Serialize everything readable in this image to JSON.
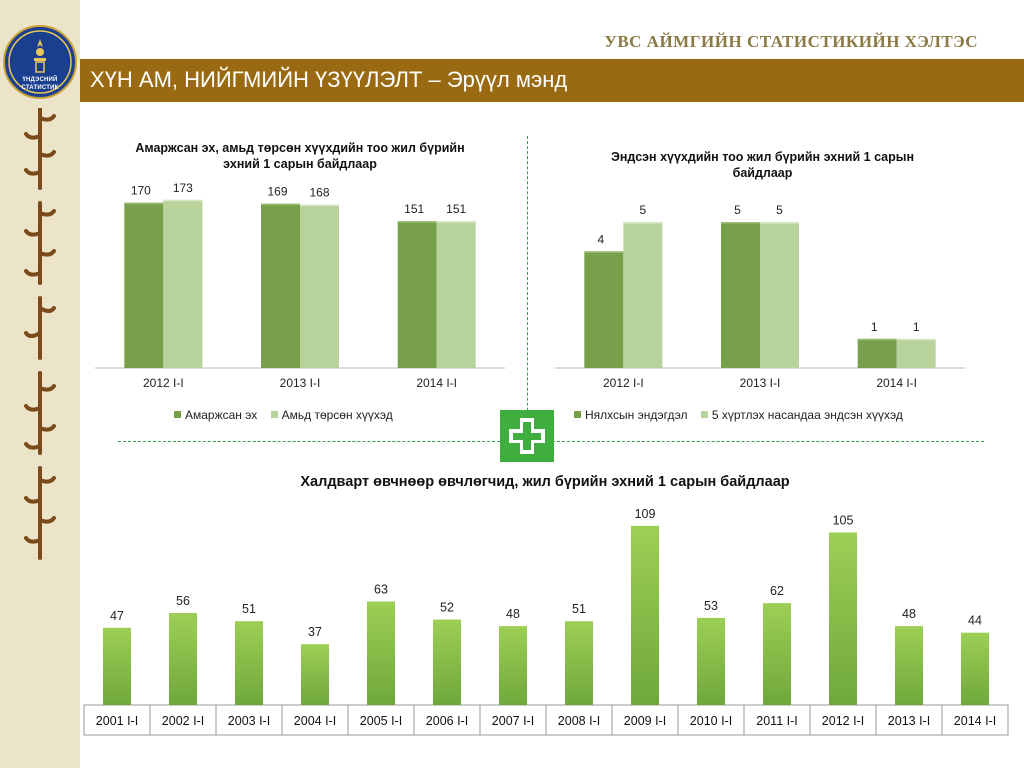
{
  "header": {
    "org_title": "УВС АЙМГИЙН СТАТИСТИКИЙН ХЭЛТЭС",
    "banner_title": "ХҮН АМ, НИЙГМИЙН ҮЗҮҮЛЭЛТ – Эрүүл мэнд",
    "logo_text_line1": "ҮНДЭСНИЙ",
    "logo_text_line2": "СТАТИСТИК"
  },
  "colors": {
    "banner": "#9a6a12",
    "series_dark": "#78a04a",
    "series_light": "#b7d29b",
    "bar_gradient_top": "#9dcf55",
    "bar_gradient_bottom": "#6fa83b",
    "divider": "#2e9e53",
    "plus_badge": "#3fae3e"
  },
  "icons": {
    "plus_badge": "medical-plus-icon",
    "logo": "national-emblem-icon"
  },
  "chart_data": [
    {
      "type": "bar",
      "title": "Амаржсан эх, амьд төрсөн хүүхдийн тоо жил бүрийн эхний 1 сарын байдлаар",
      "categories": [
        "2012 I-I",
        "2013 I-I",
        "2014 I-I"
      ],
      "series": [
        {
          "name": "Амаржсан эх",
          "values": [
            170,
            169,
            151
          ]
        },
        {
          "name": "Амьд төрсөн хүүхэд",
          "values": [
            173,
            168,
            151
          ]
        }
      ],
      "ylim": [
        0,
        180
      ],
      "grid": false,
      "legend": "bottom"
    },
    {
      "type": "bar",
      "title": "Эндсэн хүүхдийн тоо жил бүрийн эхний 1 сарын байдлаар",
      "categories": [
        "2012 I-I",
        "2013 I-I",
        "2014 I-I"
      ],
      "series": [
        {
          "name": "Нялхсын эндэгдэл",
          "values": [
            4,
            5,
            1
          ]
        },
        {
          "name": "5 хүртлэх насандаа эндсэн хүүхэд",
          "values": [
            5,
            5,
            1
          ]
        }
      ],
      "ylim": [
        0,
        6
      ],
      "grid": false,
      "legend": "bottom"
    },
    {
      "type": "bar",
      "title": "Халдварт өвчнөөр өвчлөгчид, жил бүрийн эхний 1 сарын байдлаар",
      "categories": [
        "2001 I-I",
        "2002 I-I",
        "2003 I-I",
        "2004 I-I",
        "2005 I-I",
        "2006 I-I",
        "2007 I-I",
        "2008 I-I",
        "2009 I-I",
        "2010 I-I",
        "2011 I-I",
        "2012 I-I",
        "2013 I-I",
        "2014 I-I"
      ],
      "values": [
        47,
        56,
        51,
        37,
        63,
        52,
        48,
        51,
        109,
        53,
        62,
        105,
        48,
        44
      ],
      "ylim": [
        0,
        115
      ],
      "grid": false,
      "legend": "none"
    }
  ]
}
